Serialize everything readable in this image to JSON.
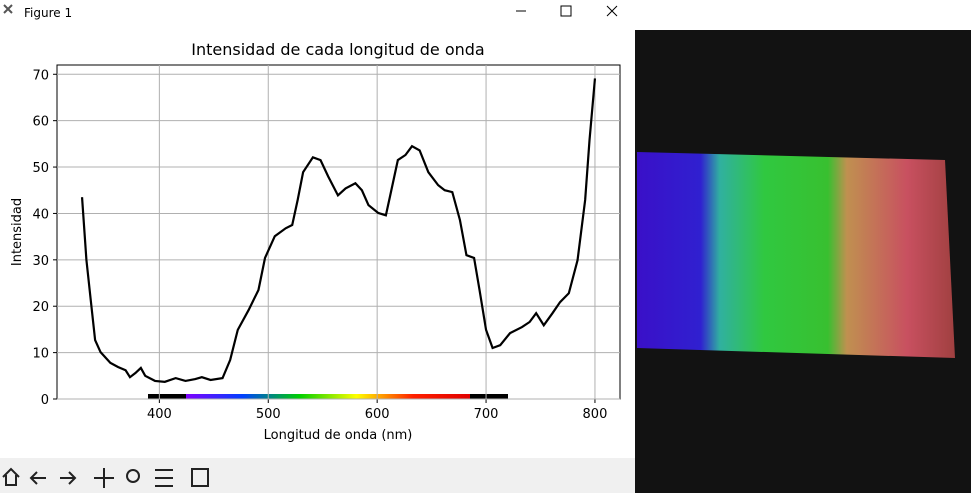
{
  "window": {
    "title": "Figure 1"
  },
  "chart_data": {
    "type": "line",
    "title": "Intensidad de cada longitud de onda",
    "x_label": "Longitud de onda (nm)",
    "y_label": "Intensidad",
    "x": [
      329,
      333,
      337,
      341,
      346,
      355,
      362,
      369,
      373,
      378,
      383,
      387,
      396,
      405,
      415,
      424,
      433,
      439,
      447,
      458,
      465,
      472,
      482,
      491,
      497,
      506,
      516,
      522,
      527,
      532,
      541,
      548,
      555,
      564,
      571,
      580,
      586,
      592,
      601,
      608,
      612,
      619,
      626,
      632,
      639,
      647,
      656,
      662,
      669,
      676,
      682,
      689,
      694,
      700,
      706,
      713,
      722,
      733,
      740,
      746,
      753,
      761,
      768,
      776,
      784,
      791,
      795,
      800
    ],
    "series": [
      {
        "name": "Intensidad",
        "color": "#000000",
        "values": [
          43.5,
          30,
          21.3,
          12.7,
          10.1,
          7.8,
          6.9,
          6.2,
          4.7,
          5.6,
          6.7,
          5,
          3.9,
          3.7,
          4.5,
          3.9,
          4.3,
          4.7,
          4.1,
          4.5,
          8.4,
          14.9,
          19.2,
          23.5,
          30.4,
          35.1,
          36.8,
          37.5,
          42.9,
          48.9,
          52.1,
          51.5,
          48,
          43.9,
          45.4,
          46.5,
          45,
          41.8,
          40.1,
          39.6,
          43.9,
          51.5,
          52.6,
          54.5,
          53.6,
          48.9,
          46.1,
          45,
          44.6,
          38.6,
          31,
          30.4,
          23.5,
          14.9,
          11,
          11.6,
          14.2,
          15.5,
          16.6,
          18.5,
          15.9,
          18.5,
          20.9,
          22.8,
          29.9,
          42.9,
          55.8,
          69.1
        ]
      }
    ],
    "xlim": [
      306,
      823
    ],
    "ylim": [
      0,
      72
    ],
    "xticks": [
      400,
      500,
      600,
      700,
      800
    ],
    "yticks": [
      0,
      10,
      20,
      30,
      40,
      50,
      60,
      70
    ],
    "grid": true
  }
}
